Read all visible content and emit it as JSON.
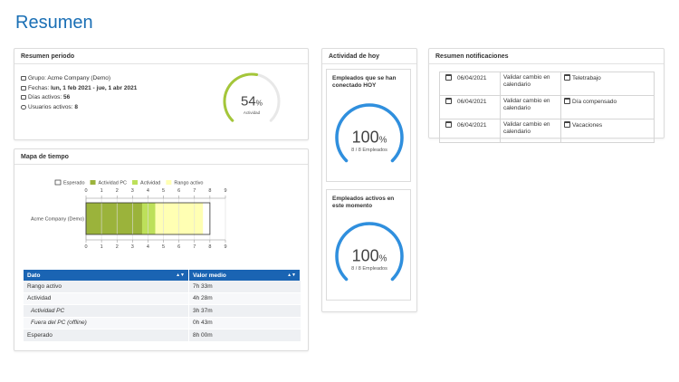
{
  "header": {
    "title": "Resumen"
  },
  "period": {
    "title": "Resumen periodo",
    "group_label": "Grupo:",
    "group": "Acme Company (Demo)",
    "dates_label": "Fechas:",
    "dates": "lun, 1 feb 2021 - jue, 1 abr 2021",
    "days_label": "Días activos:",
    "days": 56,
    "users_label": "Usuarios activos:",
    "users": 8,
    "gauge": {
      "value": 54,
      "unit": "%",
      "label": "Actividad",
      "color": "#a4c639"
    }
  },
  "time_map": {
    "title": "Mapa de tiempo",
    "chart": {
      "type": "bar",
      "categories": [
        "Acme Company (Demo)"
      ],
      "series": [
        {
          "name": "Esperado",
          "color": "#333333",
          "values": [
            8
          ]
        },
        {
          "name": "Actividad PC",
          "color": "#9bb33b",
          "values": [
            3.62
          ]
        },
        {
          "name": "Actividad",
          "color": "#bde05a",
          "values": [
            4.47
          ]
        },
        {
          "name": "Rango activo",
          "color": "#ffffb3",
          "values": [
            7.55
          ]
        }
      ],
      "xlim": [
        0,
        9
      ],
      "xticks": [
        0,
        1,
        2,
        3,
        4,
        5,
        6,
        7,
        8,
        9
      ],
      "grid": true
    },
    "table": {
      "columns": [
        "Dato",
        "Valor medio"
      ],
      "rows": [
        [
          "Rango activo",
          "7h 33m"
        ],
        [
          "Actividad",
          "4h 28m"
        ],
        [
          "Actividad PC",
          "3h 37m"
        ],
        [
          "Fuera del PC (offline)",
          "0h 43m"
        ],
        [
          "Esperado",
          "8h 00m"
        ]
      ]
    }
  },
  "today": {
    "title": "Actividad de hoy",
    "cards": [
      {
        "title": "Empleados que se han conectado HOY",
        "value": 100,
        "unit": "%",
        "detail": "8 / 8 Empleados",
        "color": "#2f8fde"
      },
      {
        "title": "Empleados activos en este momento",
        "value": 100,
        "unit": "%",
        "detail": "8 / 8 Empleados",
        "color": "#2f8fde"
      }
    ]
  },
  "notifications": {
    "title": "Resumen notificaciones",
    "rows": [
      {
        "date": "06/04/2021",
        "action": "Validar cambio en calendario",
        "type": "Teletrabajo"
      },
      {
        "date": "06/04/2021",
        "action": "Validar cambio en calendario",
        "type": "Día compensado"
      },
      {
        "date": "06/04/2021",
        "action": "Validar cambio en calendario",
        "type": "Vacaciones"
      }
    ]
  }
}
